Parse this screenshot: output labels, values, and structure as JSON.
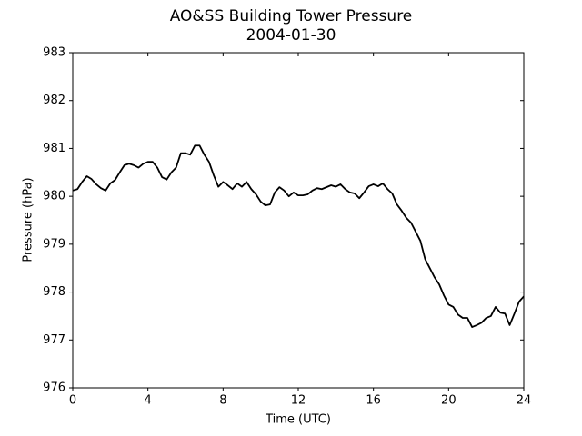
{
  "chart_data": {
    "type": "line",
    "title": "AO&SS Building Tower Pressure",
    "subtitle": "2004-01-30",
    "x_label": "Time (UTC)",
    "y_label": "Pressure (hPa)",
    "x": [
      0,
      0.25,
      0.5,
      0.75,
      1,
      1.25,
      1.5,
      1.75,
      2,
      2.25,
      2.5,
      2.75,
      3,
      3.25,
      3.5,
      3.75,
      4,
      4.25,
      4.5,
      4.75,
      5,
      5.25,
      5.5,
      5.75,
      6,
      6.25,
      6.5,
      6.75,
      7,
      7.25,
      7.5,
      7.75,
      8,
      8.25,
      8.5,
      8.75,
      9,
      9.25,
      9.5,
      9.75,
      10,
      10.25,
      10.5,
      10.75,
      11,
      11.25,
      11.5,
      11.75,
      12,
      12.25,
      12.5,
      12.75,
      13,
      13.25,
      13.5,
      13.75,
      14,
      14.25,
      14.5,
      14.75,
      15,
      15.25,
      15.5,
      15.75,
      16,
      16.25,
      16.5,
      16.75,
      17,
      17.25,
      17.5,
      17.75,
      18,
      18.25,
      18.5,
      18.75,
      19,
      19.25,
      19.5,
      19.75,
      20,
      20.25,
      20.5,
      20.75,
      21,
      21.25,
      21.5,
      21.75,
      22,
      22.25,
      22.5,
      22.75,
      23,
      23.25,
      23.5,
      23.75,
      24
    ],
    "series": [
      {
        "name": "Pressure",
        "color": "#000000",
        "values": [
          980.12,
          980.15,
          980.3,
          980.42,
          980.36,
          980.25,
          980.17,
          980.12,
          980.27,
          980.34,
          980.5,
          980.65,
          980.68,
          980.65,
          980.6,
          980.68,
          980.72,
          980.72,
          980.6,
          980.4,
          980.35,
          980.5,
          980.6,
          980.9,
          980.9,
          980.87,
          981.06,
          981.06,
          980.87,
          980.72,
          980.44,
          980.2,
          980.3,
          980.23,
          980.15,
          980.27,
          980.2,
          980.3,
          980.15,
          980.04,
          979.89,
          979.81,
          979.83,
          980.08,
          980.19,
          980.12,
          980.0,
          980.08,
          980.02,
          980.02,
          980.04,
          980.12,
          980.17,
          980.15,
          980.19,
          980.23,
          980.2,
          980.25,
          980.15,
          980.08,
          980.06,
          979.96,
          980.08,
          980.21,
          980.25,
          980.21,
          980.27,
          980.15,
          980.06,
          979.83,
          979.7,
          979.55,
          979.45,
          979.26,
          979.07,
          978.69,
          978.5,
          978.31,
          978.16,
          977.93,
          977.74,
          977.69,
          977.53,
          977.46,
          977.46,
          977.27,
          977.31,
          977.36,
          977.46,
          977.5,
          977.69,
          977.57,
          977.55,
          977.31,
          977.55,
          977.8,
          977.91
        ]
      }
    ],
    "xlim": [
      0,
      24
    ],
    "xticks": [
      0,
      4,
      8,
      12,
      16,
      20,
      24
    ],
    "ylim": [
      976,
      983
    ],
    "yticks": [
      976,
      977,
      978,
      979,
      980,
      981,
      982,
      983
    ]
  }
}
